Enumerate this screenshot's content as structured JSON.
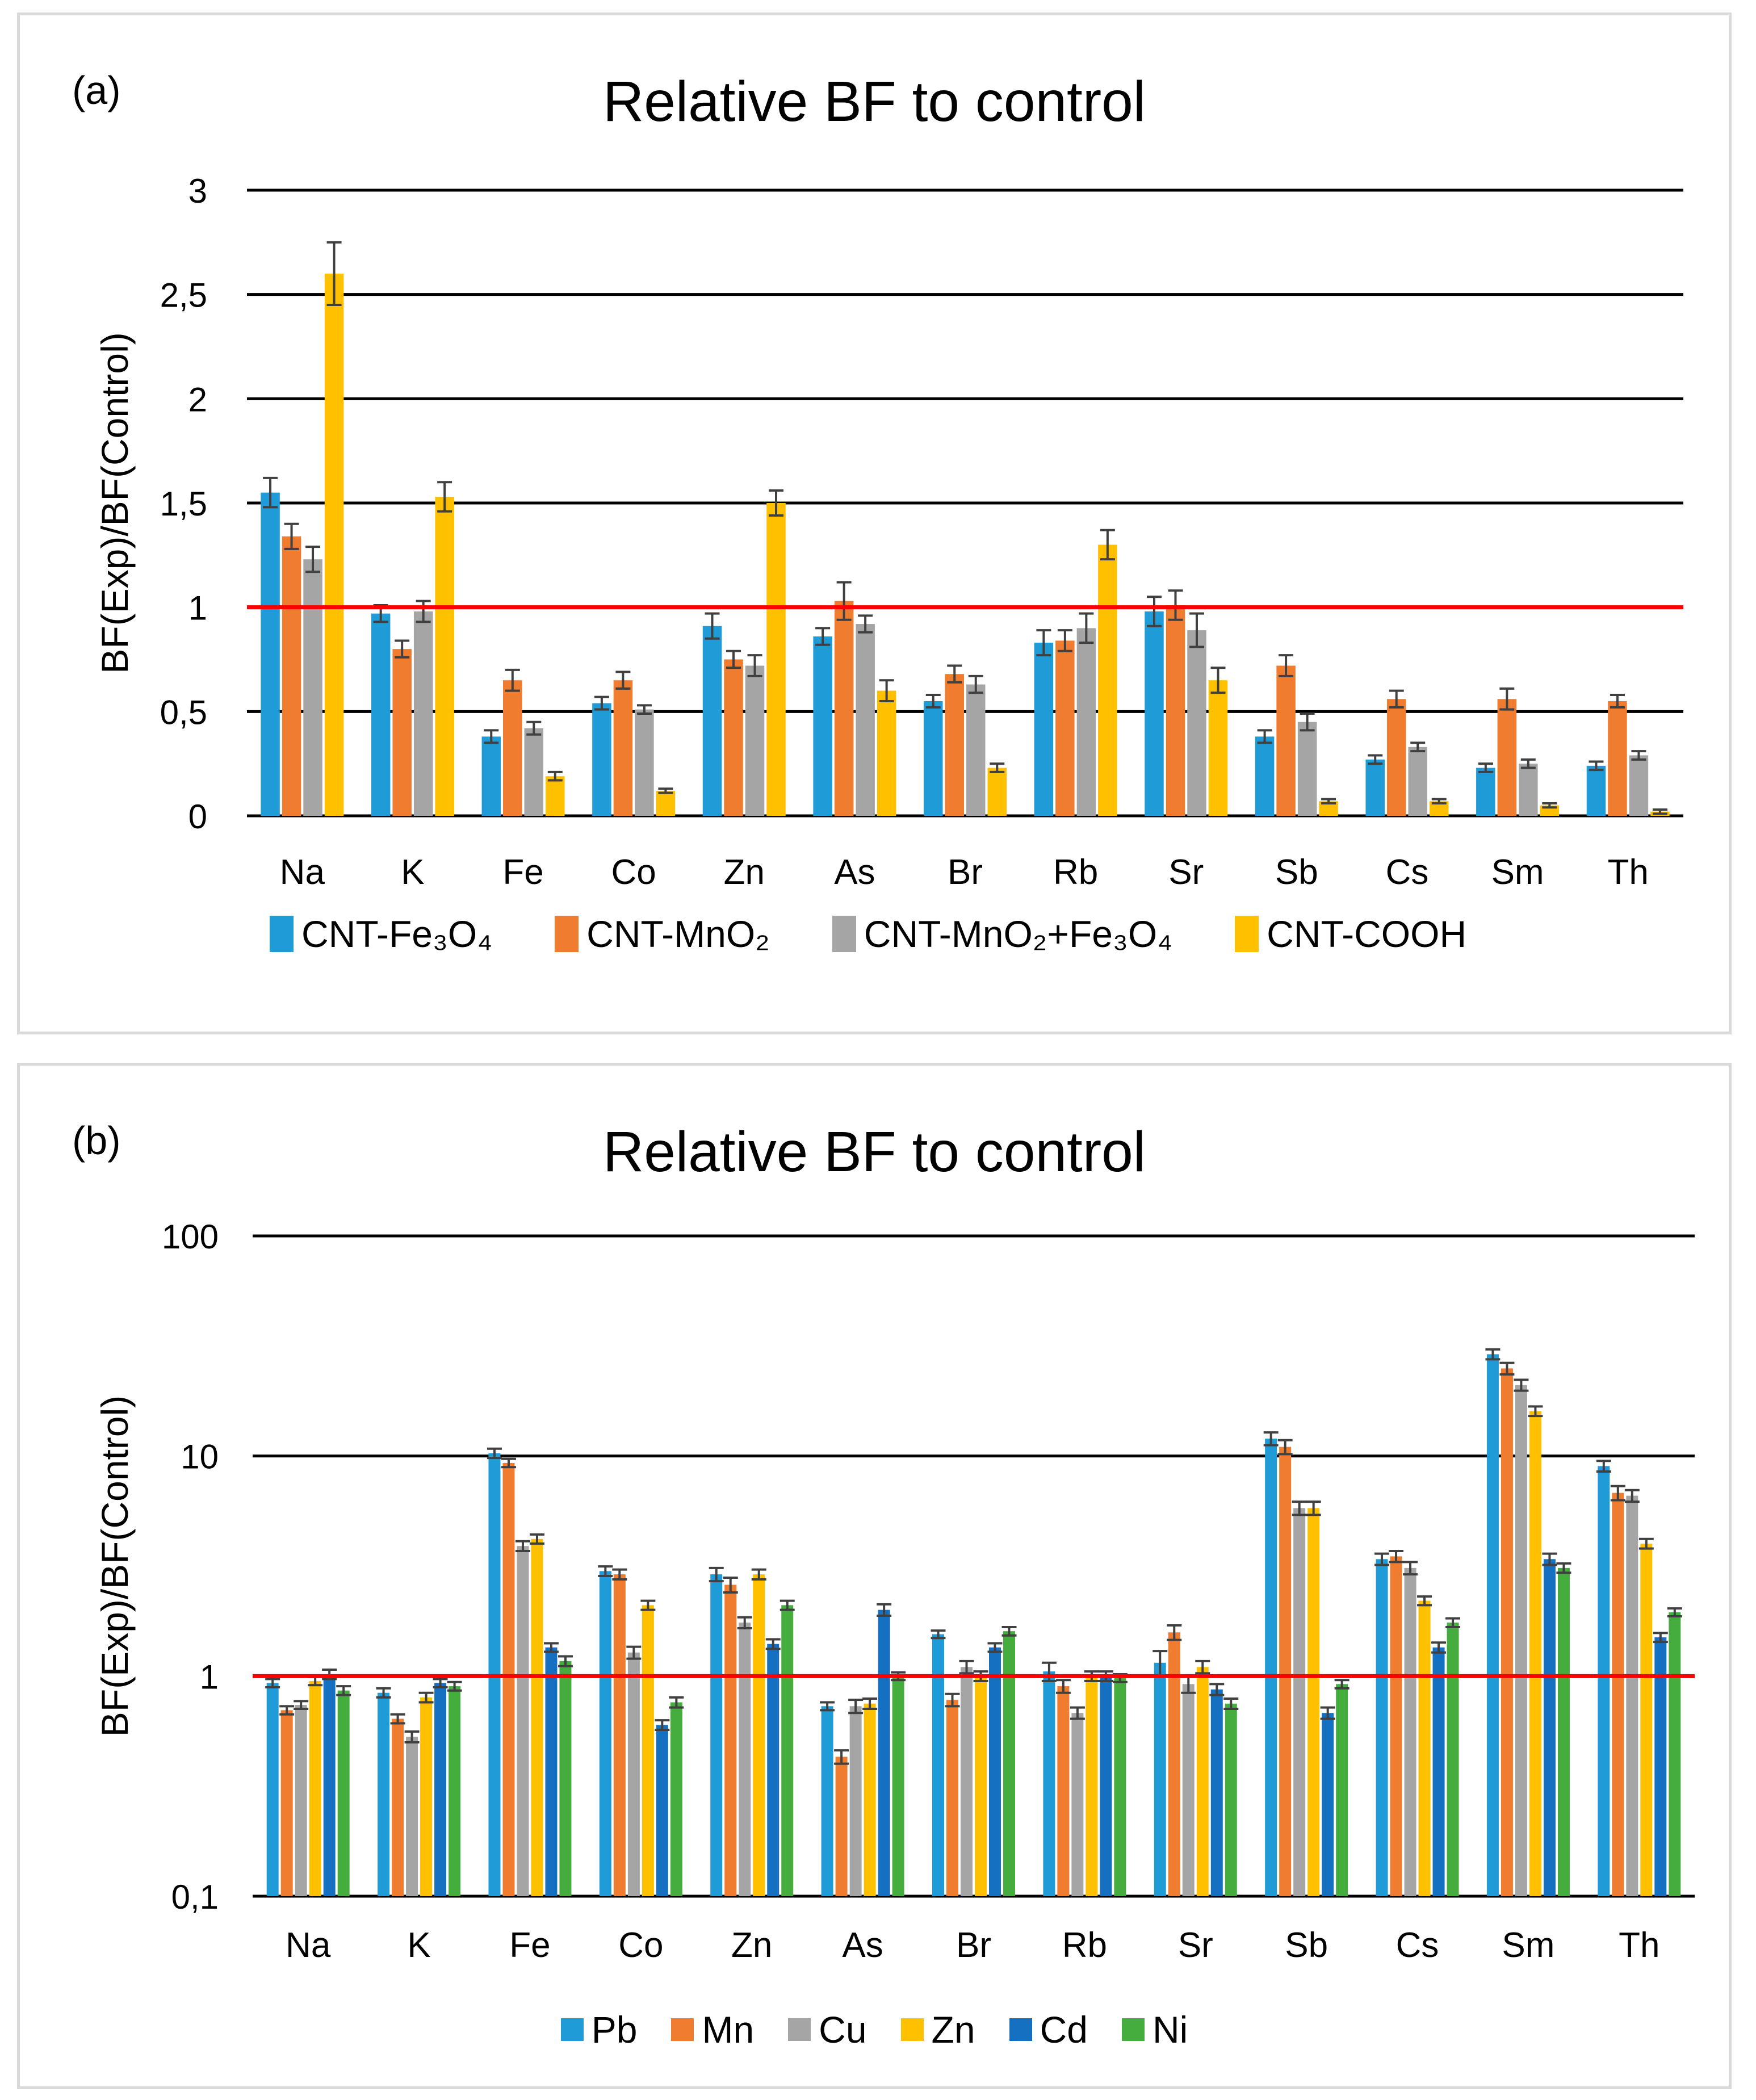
{
  "colors": {
    "panel_a": [
      "#1f9bd7",
      "#f07c30",
      "#a5a5a5",
      "#ffc000"
    ],
    "panel_b": [
      "#1f9bd7",
      "#f07c30",
      "#a5a5a5",
      "#ffc000",
      "#1670c2",
      "#44ad3d"
    ],
    "reference_line": "#ff0000",
    "grid": "#000000",
    "error_bar": "#404040"
  },
  "chart_data": [
    {
      "panel": "(a)",
      "type": "bar",
      "title": "Relative BF to control",
      "ylabel": "BF(Exp)/BF(Control)",
      "xlabel": "",
      "ylim": [
        0,
        3
      ],
      "yticks": [
        "0",
        "0,5",
        "1",
        "1,5",
        "2",
        "2,5",
        "3"
      ],
      "ytick_values": [
        0,
        0.5,
        1,
        1.5,
        2,
        2.5,
        3
      ],
      "reference_line": 1,
      "grid": true,
      "legend_position": "bottom",
      "categories": [
        "Na",
        "K",
        "Fe",
        "Co",
        "Zn",
        "As",
        "Br",
        "Rb",
        "Sr",
        "Sb",
        "Cs",
        "Sm",
        "Th"
      ],
      "series": [
        {
          "name": "CNT-Fe₃O₄",
          "values": [
            1.55,
            0.97,
            0.38,
            0.54,
            0.91,
            0.86,
            0.55,
            0.83,
            0.98,
            0.38,
            0.27,
            0.23,
            0.24
          ],
          "errors": [
            0.07,
            0.04,
            0.03,
            0.03,
            0.06,
            0.04,
            0.03,
            0.06,
            0.07,
            0.03,
            0.02,
            0.02,
            0.02
          ]
        },
        {
          "name": "CNT-MnO₂",
          "values": [
            1.34,
            0.8,
            0.65,
            0.65,
            0.75,
            1.03,
            0.68,
            0.84,
            1.01,
            0.72,
            0.56,
            0.56,
            0.55
          ],
          "errors": [
            0.06,
            0.04,
            0.05,
            0.04,
            0.04,
            0.09,
            0.04,
            0.05,
            0.07,
            0.05,
            0.04,
            0.05,
            0.03
          ]
        },
        {
          "name": "CNT-MnO₂+Fe₃O₄",
          "values": [
            1.23,
            0.98,
            0.42,
            0.51,
            0.72,
            0.92,
            0.63,
            0.9,
            0.89,
            0.45,
            0.33,
            0.25,
            0.29
          ],
          "errors": [
            0.06,
            0.05,
            0.03,
            0.02,
            0.05,
            0.04,
            0.04,
            0.07,
            0.08,
            0.04,
            0.02,
            0.02,
            0.02
          ]
        },
        {
          "name": "CNT-COOH",
          "values": [
            2.6,
            1.53,
            0.19,
            0.12,
            1.5,
            0.6,
            0.23,
            1.3,
            0.65,
            0.07,
            0.07,
            0.05,
            0.02
          ],
          "errors": [
            0.15,
            0.07,
            0.02,
            0.01,
            0.06,
            0.05,
            0.02,
            0.07,
            0.06,
            0.01,
            0.01,
            0.01,
            0.01
          ]
        }
      ]
    },
    {
      "panel": "(b)",
      "type": "bar",
      "title": "Relative BF to control",
      "ylabel": "BF(Exp)/BF(Control)",
      "xlabel": "",
      "yscale": "log",
      "ylim": [
        0.1,
        100
      ],
      "yticks": [
        "0,1",
        "1",
        "10",
        "100"
      ],
      "ytick_values": [
        0.1,
        1,
        10,
        100
      ],
      "reference_line": 1,
      "grid": true,
      "legend_position": "bottom",
      "categories": [
        "Na",
        "K",
        "Fe",
        "Co",
        "Zn",
        "As",
        "Br",
        "Rb",
        "Sr",
        "Sb",
        "Cs",
        "Sm",
        "Th"
      ],
      "series": [
        {
          "name": "Pb",
          "values": [
            0.93,
            0.84,
            10.3,
            3.0,
            2.9,
            0.73,
            1.55,
            1.05,
            1.15,
            12.0,
            3.4,
            29.0,
            9.0
          ],
          "errors": [
            0.04,
            0.04,
            0.5,
            0.15,
            0.2,
            0.03,
            0.06,
            0.1,
            0.15,
            0.8,
            0.2,
            1.5,
            0.5
          ]
        },
        {
          "name": "Mn",
          "values": [
            0.7,
            0.64,
            9.3,
            2.9,
            2.6,
            0.43,
            0.78,
            0.9,
            1.58,
            11.0,
            3.5,
            25.0,
            6.8
          ],
          "errors": [
            0.03,
            0.03,
            0.4,
            0.15,
            0.2,
            0.03,
            0.05,
            0.06,
            0.12,
            0.8,
            0.2,
            1.5,
            0.5
          ]
        },
        {
          "name": "Cu",
          "values": [
            0.74,
            0.53,
            3.9,
            1.28,
            1.75,
            0.73,
            1.1,
            0.68,
            0.92,
            5.8,
            3.1,
            21.0,
            6.6
          ],
          "errors": [
            0.03,
            0.03,
            0.2,
            0.08,
            0.1,
            0.05,
            0.07,
            0.04,
            0.08,
            0.4,
            0.2,
            1.2,
            0.4
          ]
        },
        {
          "name": "Zn",
          "values": [
            0.95,
            0.8,
            4.2,
            2.1,
            2.9,
            0.75,
            1.0,
            1.0,
            1.1,
            5.8,
            2.2,
            16.0,
            4.0
          ],
          "errors": [
            0.04,
            0.04,
            0.2,
            0.1,
            0.15,
            0.04,
            0.05,
            0.05,
            0.07,
            0.4,
            0.1,
            0.8,
            0.2
          ]
        },
        {
          "name": "Cd",
          "values": [
            1.02,
            0.93,
            1.35,
            0.6,
            1.4,
            2.0,
            1.35,
            1.0,
            0.87,
            0.68,
            1.35,
            3.4,
            1.5
          ],
          "errors": [
            0.05,
            0.04,
            0.06,
            0.03,
            0.07,
            0.12,
            0.06,
            0.05,
            0.05,
            0.04,
            0.07,
            0.2,
            0.07
          ]
        },
        {
          "name": "Ni",
          "values": [
            0.86,
            0.9,
            1.17,
            0.76,
            2.1,
            1.0,
            1.6,
            0.98,
            0.75,
            0.92,
            1.75,
            3.1,
            1.95
          ],
          "errors": [
            0.04,
            0.04,
            0.06,
            0.04,
            0.1,
            0.04,
            0.07,
            0.04,
            0.04,
            0.04,
            0.08,
            0.15,
            0.08
          ]
        }
      ]
    }
  ]
}
